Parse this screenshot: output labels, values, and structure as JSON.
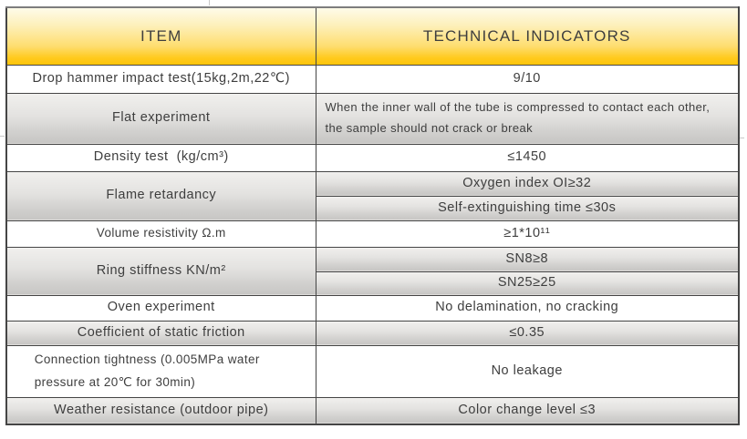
{
  "table": {
    "header": {
      "item": "ITEM",
      "indicators": "TECHNICAL INDICATORS"
    },
    "rows": [
      {
        "item": "Drop hammer impact test(15kg,2m,22℃)",
        "indicators": [
          "9/10"
        ]
      },
      {
        "item": "Flat experiment",
        "indicators": [
          "When the inner wall of the tube is compressed to contact each other, the sample should not crack or break"
        ]
      },
      {
        "item": "Density test  (kg/cm³)",
        "indicators": [
          "≤1450"
        ]
      },
      {
        "item": "Flame retardancy",
        "indicators": [
          "Oxygen index OI≥32",
          "Self-extinguishing time ≤30s"
        ]
      },
      {
        "item": "Volume resistivity Ω.m",
        "indicators": [
          "≥1*10¹¹"
        ]
      },
      {
        "item": "Ring stiffness KN/m²",
        "indicators": [
          "SN8≥8",
          "SN25≥25"
        ]
      },
      {
        "item": "Oven experiment",
        "indicators": [
          "No delamination, no cracking"
        ]
      },
      {
        "item": "Coefficient of static friction",
        "indicators": [
          "≤0.35"
        ]
      },
      {
        "item": "Connection tightness (0.005MPa water pressure at 20℃ for 30min)",
        "indicators": [
          "No leakage"
        ]
      },
      {
        "item": "Weather resistance (outdoor pipe)",
        "indicators": [
          "Color change level ≤3"
        ]
      }
    ]
  },
  "colors": {
    "header_gradient_top": "#FEFBE9",
    "header_gradient_bottom": "#FEC50A",
    "gray_row_top": "#F1F0EE",
    "gray_row_bottom": "#C6C5C3",
    "border": "#454545",
    "text": "#3E3E3E"
  }
}
